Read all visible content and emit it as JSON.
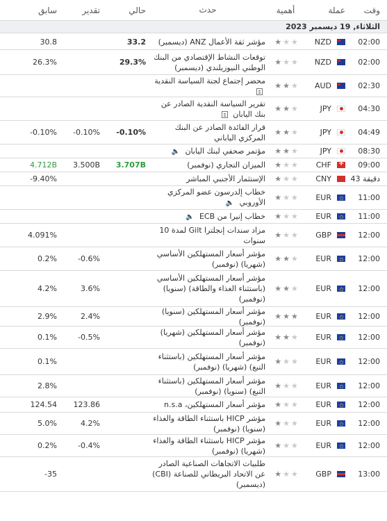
{
  "header": {
    "time": "وقت",
    "currency": "عملة",
    "importance": "أهمية",
    "event": "حدث",
    "actual": "حالي",
    "forecast": "تقدير",
    "previous": "سابق"
  },
  "date_label": "الثلاثاء, 19 ديسمبر 2023",
  "rows": [
    {
      "time": "02:00",
      "cur": "NZD",
      "stars": 1,
      "event": "مؤشر ثقة الأعمال ANZ (ديسمبر)",
      "icon": "",
      "actual": "33.2",
      "actual_green": false,
      "forecast": "",
      "previous": "30.8"
    },
    {
      "time": "02:00",
      "cur": "NZD",
      "stars": 1,
      "event": "توقعات النشاط الإقتصادي من البنك الوطني النيوزيلندي (ديسمبر)",
      "icon": "",
      "actual": "29.3%",
      "actual_green": false,
      "forecast": "",
      "previous": "26.3%"
    },
    {
      "time": "02:30",
      "cur": "AUD",
      "stars": 2,
      "event": "محضر إجتماع لجنة السياسة النقدية",
      "icon": "document-icon",
      "actual": "",
      "actual_green": false,
      "forecast": "",
      "previous": ""
    },
    {
      "time": "04:30",
      "cur": "JPY",
      "stars": 2,
      "event": "تقرير السياسة النقدية الصادر عن بنك اليابان",
      "icon": "document-icon",
      "actual": "",
      "actual_green": false,
      "forecast": "",
      "previous": ""
    },
    {
      "time": "04:49",
      "cur": "JPY",
      "stars": 2,
      "event": "قرار الفائدة الصادر عن البنك المركزي الياباني",
      "icon": "",
      "actual": "-0.10%",
      "actual_green": false,
      "forecast": "-0.10%",
      "previous": "-0.10%"
    },
    {
      "time": "08:30",
      "cur": "JPY",
      "stars": 2,
      "event": "مؤتمر صحفي لبنك اليابان",
      "icon": "speaker-icon",
      "actual": "",
      "actual_green": false,
      "forecast": "",
      "previous": ""
    },
    {
      "time": "09:00",
      "cur": "CHF",
      "stars": 1,
      "event": "الميزان التجاري (نوفمبر)",
      "icon": "",
      "actual": "3.707B",
      "actual_green": true,
      "forecast": "3.500B",
      "previous": "4.712B",
      "previous_green": true
    },
    {
      "time": "43 دقيقة",
      "cur": "CNY",
      "stars": 1,
      "event": "الإستثمار الأجنبي المباشر",
      "icon": "",
      "actual": "",
      "actual_green": false,
      "forecast": "",
      "previous": "-9.40%"
    },
    {
      "time": "11:00",
      "cur": "EUR",
      "stars": 1,
      "event": "خطاب إلدرسون عضو المركزي الأوروبي",
      "icon": "speaker-icon",
      "actual": "",
      "actual_green": false,
      "forecast": "",
      "previous": ""
    },
    {
      "time": "11:00",
      "cur": "EUR",
      "stars": 1,
      "event": "خطاب إنيرا من ECB",
      "icon": "speaker-icon",
      "actual": "",
      "actual_green": false,
      "forecast": "",
      "previous": ""
    },
    {
      "time": "12:00",
      "cur": "GBP",
      "stars": 1,
      "event": "مزاد سندات إنجلترا Gilt لمدة 10 سنوات",
      "icon": "",
      "actual": "",
      "actual_green": false,
      "forecast": "",
      "previous": "4.091%"
    },
    {
      "time": "12:00",
      "cur": "EUR",
      "stars": 2,
      "event": "مؤشر أسعار المستهلكين الأساسي (شهريا) (نوفمبر)",
      "icon": "",
      "actual": "",
      "actual_green": false,
      "forecast": "-0.6%",
      "previous": "0.2%"
    },
    {
      "time": "12:00",
      "cur": "EUR",
      "stars": 2,
      "event": "مؤشر أسعار المستهلكين الأساسي (باستثناء الغذاء والطاقة) (سنويا) (نوفمبر)",
      "icon": "",
      "actual": "",
      "actual_green": false,
      "forecast": "3.6%",
      "previous": "4.2%"
    },
    {
      "time": "12:00",
      "cur": "EUR",
      "stars": 3,
      "event": "مؤشر أسعار المستهلكين (سنويا) (نوفمبر)",
      "icon": "",
      "actual": "",
      "actual_green": false,
      "forecast": "2.4%",
      "previous": "2.9%"
    },
    {
      "time": "12:00",
      "cur": "EUR",
      "stars": 2,
      "event": "مؤشر أسعار المستهلكين (شهريا) (نوفمبر)",
      "icon": "",
      "actual": "",
      "actual_green": false,
      "forecast": "-0.5%",
      "previous": "0.1%"
    },
    {
      "time": "12:00",
      "cur": "EUR",
      "stars": 1,
      "event": "مؤشر أسعار المستهلكين (باستثناء التبغ) (شهريا) (نوفمبر)",
      "icon": "",
      "actual": "",
      "actual_green": false,
      "forecast": "",
      "previous": "0.1%"
    },
    {
      "time": "12:00",
      "cur": "EUR",
      "stars": 1,
      "event": "مؤشر أسعار المستهلكين (باستثناء التبغ) (سنويا) (نوفمبر)",
      "icon": "",
      "actual": "",
      "actual_green": false,
      "forecast": "",
      "previous": "2.8%"
    },
    {
      "time": "12:00",
      "cur": "EUR",
      "stars": 1,
      "event": "مؤشر أسعار المستهلكين، n.s.a",
      "icon": "",
      "actual": "",
      "actual_green": false,
      "forecast": "123.86",
      "previous": "124.54"
    },
    {
      "time": "12:00",
      "cur": "EUR",
      "stars": 1,
      "event": "مؤشر HICP باستثناء الطاقة والغذاء (سنويا) (نوفمبر)",
      "icon": "",
      "actual": "",
      "actual_green": false,
      "forecast": "4.2%",
      "previous": "5.0%"
    },
    {
      "time": "12:00",
      "cur": "EUR",
      "stars": 1,
      "event": "مؤشر HICP باستثناء الطاقة والغذاء (شهريا) (نوفمبر)",
      "icon": "",
      "actual": "",
      "actual_green": false,
      "forecast": "-0.4%",
      "previous": "0.2%"
    },
    {
      "time": "13:00",
      "cur": "GBP",
      "stars": 1,
      "event": "طلبيات الاتجاهات الصناعية الصادر عن الاتحاد البريطاني للصناعة (CBI) (ديسمبر)",
      "icon": "",
      "actual": "",
      "actual_green": false,
      "forecast": "",
      "previous": "-35"
    }
  ]
}
